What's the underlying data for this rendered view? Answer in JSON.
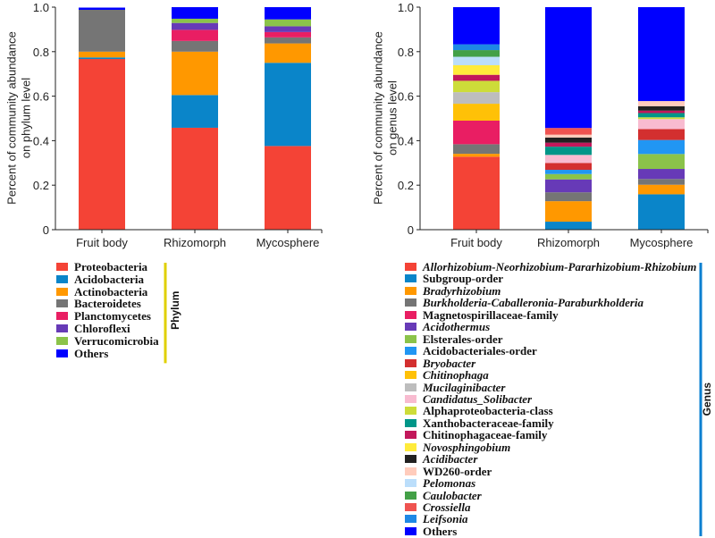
{
  "chart_data": [
    {
      "type": "bar",
      "stacked": true,
      "categories": [
        "Fruit body",
        "Rhizomorph",
        "Mycosphere"
      ],
      "ylabel": [
        "Percent of community abundance",
        "on phylum level"
      ],
      "ylim": [
        0,
        1.0
      ],
      "yticks": [
        "0",
        "0.2",
        "0.4",
        "0.6",
        "0.8",
        "1.0"
      ],
      "legend_title": "Phylum",
      "legend_position": "bottom",
      "legend_bar_color": "#e0d000",
      "series": [
        {
          "name": "Proteobacteria",
          "color": "#f44336",
          "italic": false,
          "values": [
            0.767,
            0.458,
            0.376
          ]
        },
        {
          "name": "Acidobacteria",
          "color": "#0a85c9",
          "italic": false,
          "values": [
            0.007,
            0.147,
            0.374
          ]
        },
        {
          "name": "Actinobacteria",
          "color": "#ff9800",
          "italic": false,
          "values": [
            0.026,
            0.195,
            0.087
          ]
        },
        {
          "name": "Bacteroidetes",
          "color": "#757575",
          "italic": false,
          "values": [
            0.188,
            0.048,
            0.027
          ]
        },
        {
          "name": "Planctomycetes",
          "color": "#e91e63",
          "italic": false,
          "values": [
            0.0,
            0.05,
            0.024
          ]
        },
        {
          "name": "Chloroflexi",
          "color": "#673ab7",
          "italic": false,
          "values": [
            0.0,
            0.031,
            0.026
          ]
        },
        {
          "name": "Verrucomicrobia",
          "color": "#8bc34a",
          "italic": false,
          "values": [
            0.0,
            0.019,
            0.031
          ]
        },
        {
          "name": "Others",
          "color": "#0000ff",
          "italic": false,
          "values": [
            0.01,
            0.052,
            0.055
          ]
        }
      ]
    },
    {
      "type": "bar",
      "stacked": true,
      "categories": [
        "Fruit body",
        "Rhizomorph",
        "Mycosphere"
      ],
      "ylabel": [
        "Percent of community abundance",
        "on genus level"
      ],
      "ylim": [
        0,
        1.0
      ],
      "yticks": [
        "0",
        "0.2",
        "0.4",
        "0.6",
        "0.8",
        "1.0"
      ],
      "legend_title": "Genus",
      "legend_position": "bottom",
      "legend_bar_color": "#0a7fd0",
      "series": [
        {
          "name": "Allorhizobium-Neorhizobium-Pararhizobium-Rhizobium",
          "color": "#f44336",
          "italic": true,
          "values": [
            0.328,
            0.0,
            0.0
          ]
        },
        {
          "name": "Subgroup-order",
          "color": "#0a85c9",
          "italic": false,
          "values": [
            0.0,
            0.036,
            0.159
          ]
        },
        {
          "name": "Bradyrhizobium",
          "color": "#ff9800",
          "italic": true,
          "values": [
            0.013,
            0.092,
            0.043
          ]
        },
        {
          "name": "Burkholderia-Caballeronia-Paraburkholderia",
          "color": "#757575",
          "italic": true,
          "values": [
            0.043,
            0.04,
            0.026
          ]
        },
        {
          "name": "Magnetospirillaceae-family",
          "color": "#e91e63",
          "italic": false,
          "values": [
            0.106,
            0.0,
            0.0
          ]
        },
        {
          "name": "Acidothermus",
          "color": "#673ab7",
          "italic": true,
          "values": [
            0.0,
            0.058,
            0.045
          ]
        },
        {
          "name": "Elsterales-order",
          "color": "#8bc34a",
          "italic": false,
          "values": [
            0.0,
            0.024,
            0.067
          ]
        },
        {
          "name": "Acidobacteriales-order",
          "color": "#2196f3",
          "italic": false,
          "values": [
            0.0,
            0.019,
            0.063
          ]
        },
        {
          "name": "Bryobacter",
          "color": "#d32f2f",
          "italic": true,
          "values": [
            0.0,
            0.031,
            0.049
          ]
        },
        {
          "name": "Chitinophaga",
          "color": "#ffc107",
          "italic": true,
          "values": [
            0.076,
            0.0,
            0.0
          ]
        },
        {
          "name": "Mucilaginibacter",
          "color": "#bdbdbd",
          "italic": true,
          "values": [
            0.052,
            0.0,
            0.0
          ]
        },
        {
          "name": "Candidatus_Solibacter",
          "color": "#f8bbd0",
          "italic": true,
          "values": [
            0.0,
            0.036,
            0.045
          ]
        },
        {
          "name": "Alphaproteobacteria-class",
          "color": "#cddc39",
          "italic": false,
          "values": [
            0.051,
            0.0,
            0.008
          ]
        },
        {
          "name": "Xanthobacteraceae-family",
          "color": "#009688",
          "italic": false,
          "values": [
            0.0,
            0.037,
            0.019
          ]
        },
        {
          "name": "Chitinophagaceae-family",
          "color": "#c2185b",
          "italic": false,
          "values": [
            0.027,
            0.018,
            0.011
          ]
        },
        {
          "name": "Novosphingobium",
          "color": "#ffeb3b",
          "italic": true,
          "values": [
            0.043,
            0.0,
            0.0
          ]
        },
        {
          "name": "Acidibacter",
          "color": "#212121",
          "italic": true,
          "values": [
            0.0,
            0.023,
            0.02
          ]
        },
        {
          "name": "WD260-order",
          "color": "#ffccbc",
          "italic": false,
          "values": [
            0.0,
            0.013,
            0.023
          ]
        },
        {
          "name": "Pelomonas",
          "color": "#bbdefb",
          "italic": true,
          "values": [
            0.038,
            0.0,
            0.0
          ]
        },
        {
          "name": "Caulobacter",
          "color": "#43a047",
          "italic": true,
          "values": [
            0.03,
            0.0,
            0.0
          ]
        },
        {
          "name": "Crossiella",
          "color": "#ef5350",
          "italic": true,
          "values": [
            0.0,
            0.03,
            0.0
          ]
        },
        {
          "name": "Leifsonia",
          "color": "#1e88e5",
          "italic": true,
          "values": [
            0.026,
            0.0,
            0.0
          ]
        },
        {
          "name": "Others",
          "color": "#0000ff",
          "italic": false,
          "values": [
            0.167,
            0.543,
            0.422
          ]
        }
      ]
    }
  ]
}
